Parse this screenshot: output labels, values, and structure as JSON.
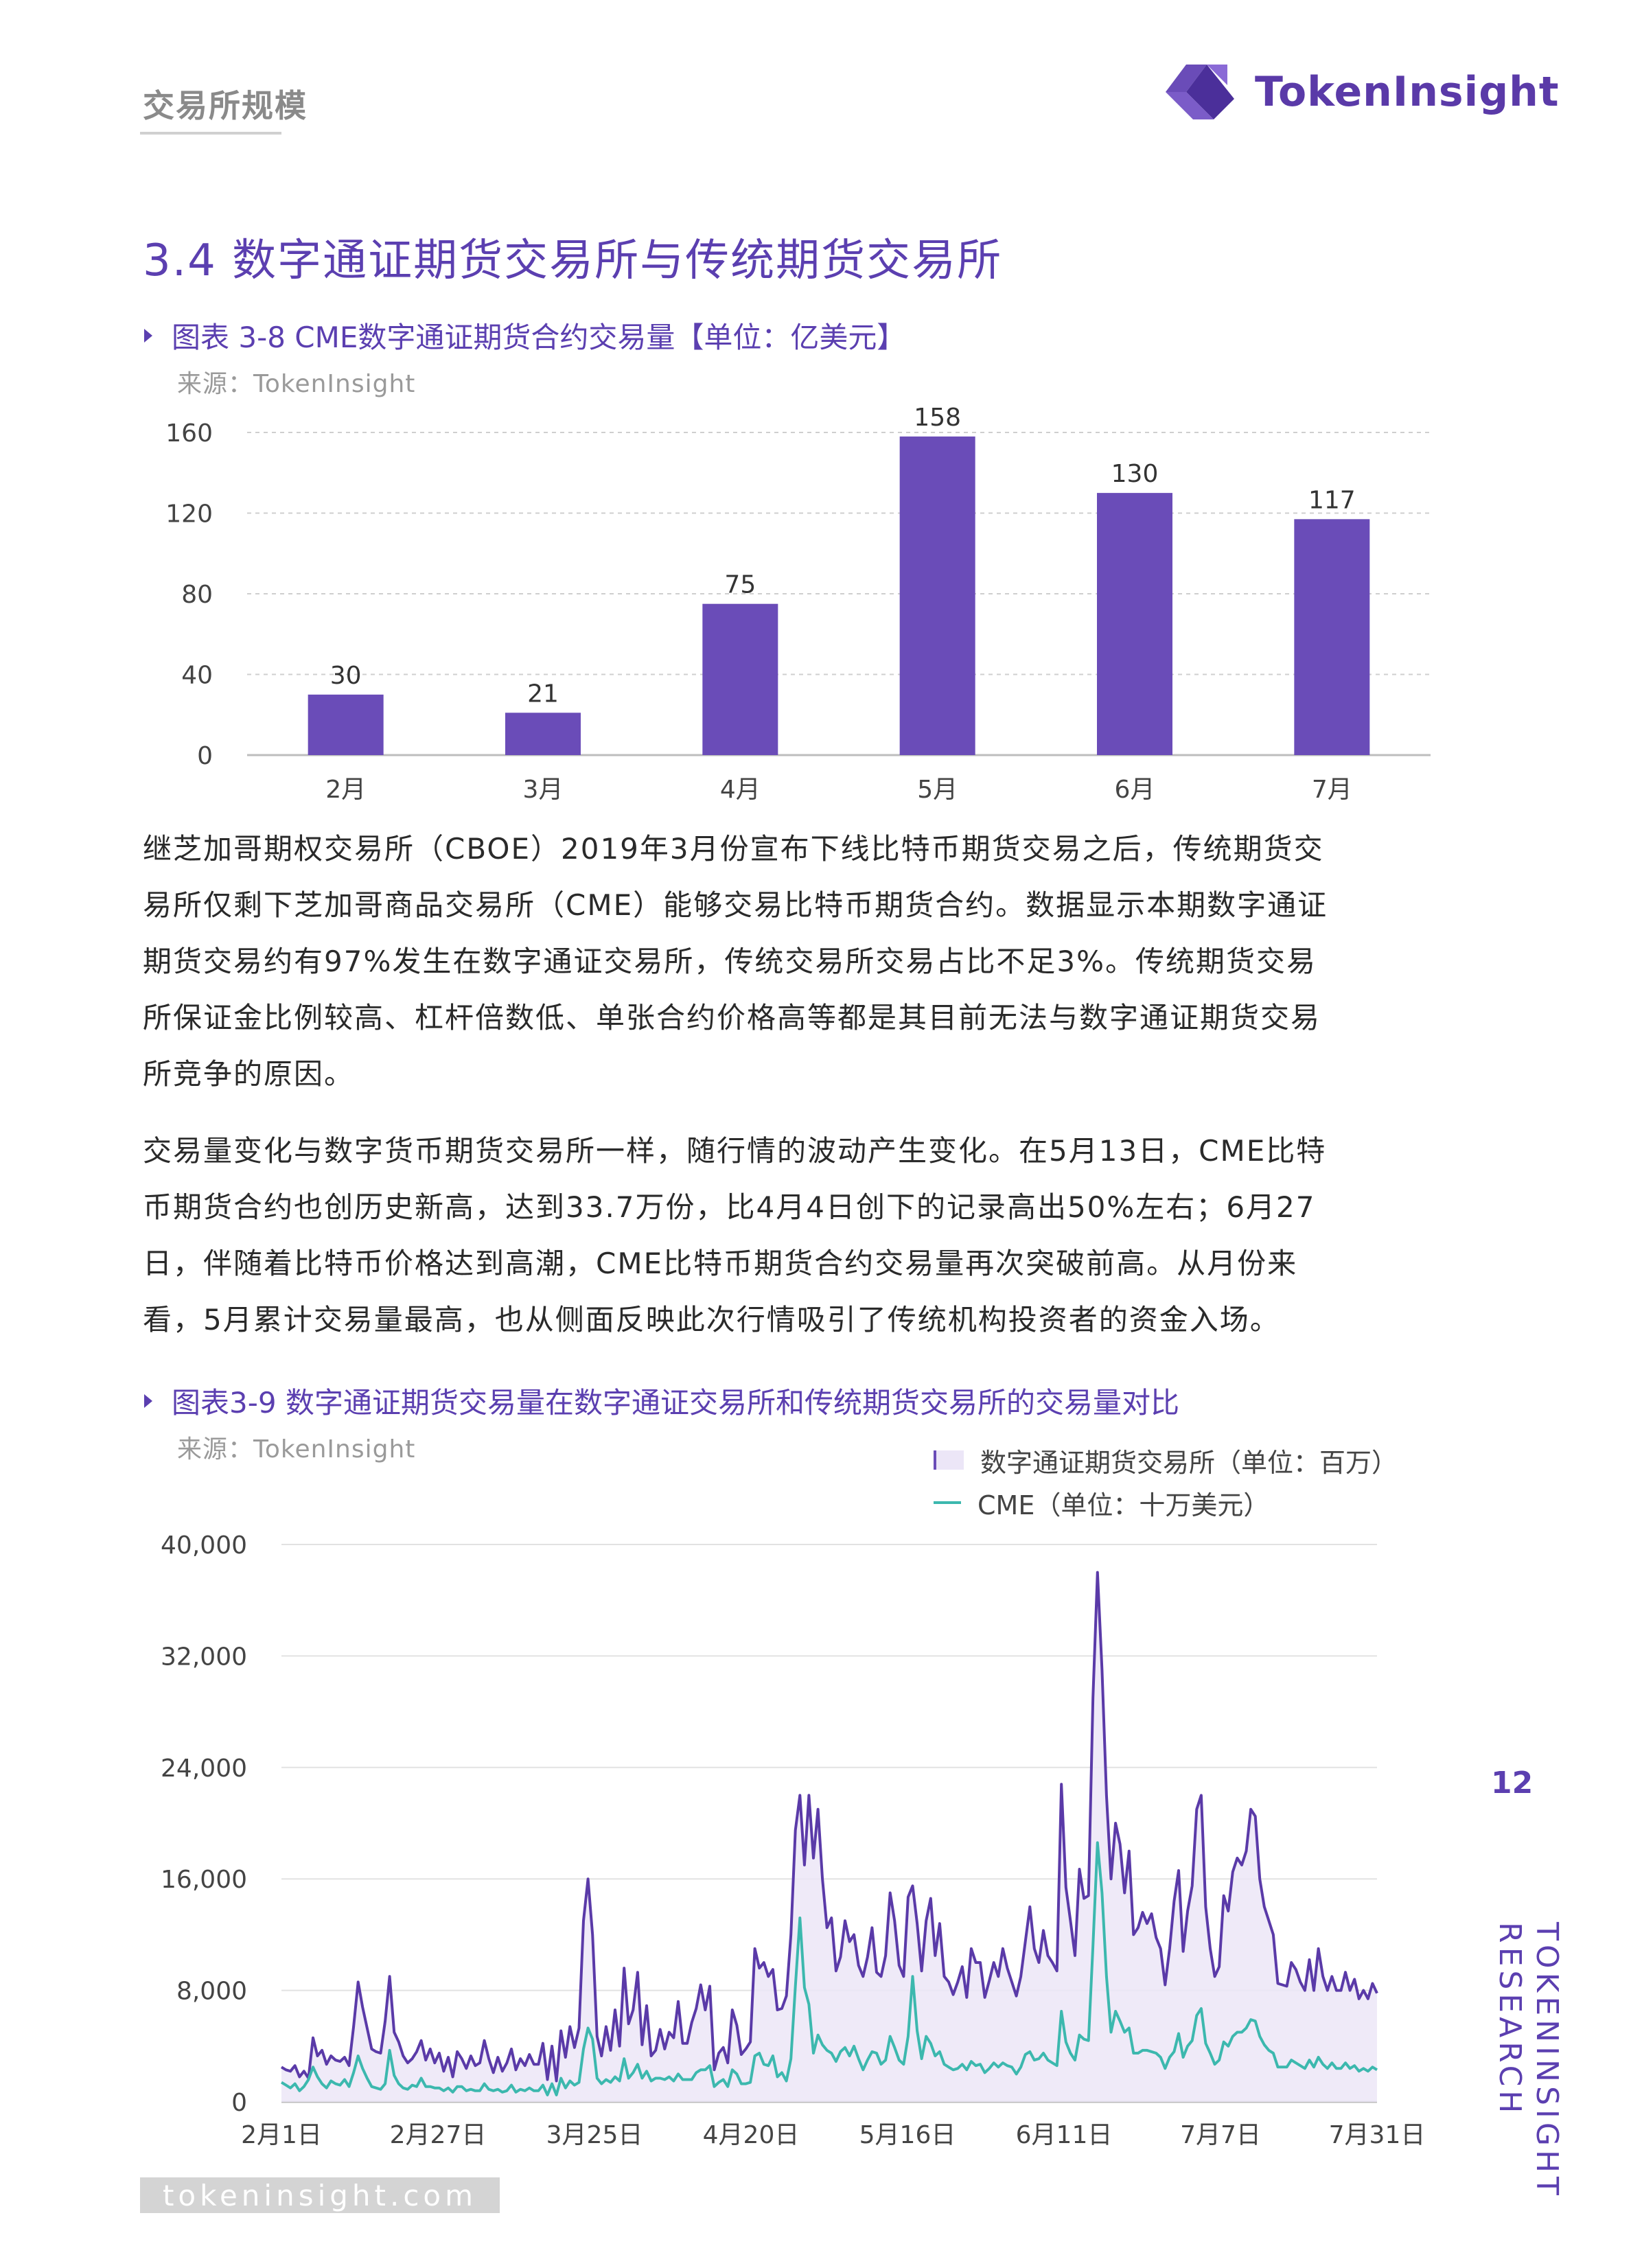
{
  "header": {
    "section": "交易所规模",
    "logo_text": "TokenInsight"
  },
  "section_title": "3.4 数字通证期货交易所与传统期货交易所",
  "figure1": {
    "caption": "图表 3-8 CME数字通证期货合约交易量【单位：亿美元】",
    "source": "来源：TokenInsight"
  },
  "figure2": {
    "caption": "图表3-9 数字通证期货交易量在数字通证交易所和传统期货交易所的交易量对比",
    "source": "来源：TokenInsight"
  },
  "paragraph1": [
    "继芝加哥期权交易所（CBOE）2019年3月份宣布下线比特币期货交易之后，传统期货交",
    "易所仅剩下芝加哥商品交易所（CME）能够交易比特币期货合约。数据显示本期数字通证",
    "期货交易约有97%发生在数字通证交易所，传统交易所交易占比不足3%。传统期货交易",
    "所保证金比例较高、杠杆倍数低、单张合约价格高等都是其目前无法与数字通证期货交易",
    "所竞争的原因。"
  ],
  "paragraph2": [
    "交易量变化与数字货币期货交易所一样，随行情的波动产生变化。在5月13日，CME比特",
    "币期货合约也创历史新高，达到33.7万份，比4月4日创下的记录高出50%左右；6月27",
    "日，伴随着比特币价格达到高潮，CME比特币期货合约交易量再次突破前高。从月份来",
    "看，5月累计交易量最高，也从侧面反映此次行情吸引了传统机构投资者的资金入场。"
  ],
  "page_number": "12",
  "vertical_brand": [
    "TOKENINSIGHT",
    "RESEARCH"
  ],
  "footer_url": "tokeninsight.com",
  "colors": {
    "purple": "#6a4cb8",
    "teal": "#3cb8ae",
    "accent": "#5b3fb0"
  },
  "chart_data": [
    {
      "type": "bar",
      "categories": [
        "2月",
        "3月",
        "4月",
        "5月",
        "6月",
        "7月"
      ],
      "values": [
        30,
        21,
        75,
        158,
        130,
        117
      ],
      "ylim": [
        0,
        160
      ],
      "yticks": [
        0,
        40,
        80,
        120,
        160
      ],
      "grid": true,
      "data_labels": true
    },
    {
      "type": "area",
      "ylim": [
        0,
        40000
      ],
      "yticks": [
        0,
        8000,
        16000,
        24000,
        32000,
        40000
      ],
      "ytick_labels": [
        "0",
        "8,000",
        "16,000",
        "24,000",
        "32,000",
        "40,000"
      ],
      "xtick_labels": [
        "2月1日",
        "2月27日",
        "3月25日",
        "4月20日",
        "5月16日",
        "6月11日",
        "7月7日",
        "7月31日"
      ],
      "legend_position": "top-right",
      "grid": true,
      "series": [
        {
          "name": "数字通证期货交易所（单位：百万）",
          "values": [
            2500,
            2300,
            2200,
            2600,
            1800,
            2200,
            1700,
            4600,
            3300,
            3700,
            2700,
            3300,
            3000,
            2900,
            3200,
            2600,
            5400,
            8600,
            6800,
            5300,
            3800,
            3600,
            3500,
            5800,
            9000,
            5000,
            4300,
            3300,
            2800,
            3100,
            3600,
            4400,
            3000,
            3800,
            2800,
            3500,
            2200,
            3200,
            1800,
            3600,
            3100,
            2400,
            3300,
            2600,
            2800,
            4400,
            3100,
            2100,
            3200,
            2200,
            2800,
            3800,
            2300,
            3100,
            2600,
            3400,
            2700,
            2700,
            4200,
            1600,
            4000,
            1500,
            5100,
            3200,
            5400,
            3900,
            5300,
            13000,
            16000,
            12000,
            4700,
            3300,
            5400,
            3700,
            6600,
            4000,
            9600,
            5600,
            6600,
            9300,
            4100,
            6900,
            3300,
            3700,
            5200,
            3800,
            5000,
            4600,
            7200,
            4200,
            4200,
            5700,
            6700,
            8400,
            6600,
            8300,
            2300,
            3500,
            3900,
            2800,
            6600,
            5500,
            3400,
            3800,
            4300,
            11000,
            9600,
            10000,
            9000,
            9500,
            6600,
            6700,
            7600,
            12000,
            19500,
            22000,
            17000,
            22000,
            17500,
            21000,
            16000,
            12500,
            13200,
            9400,
            10400,
            13000,
            11500,
            12000,
            9800,
            9000,
            10400,
            12500,
            9300,
            9000,
            10500,
            15000,
            13000,
            9800,
            9000,
            14700,
            15500,
            12800,
            9400,
            13000,
            14600,
            10500,
            12800,
            9000,
            8600,
            7700,
            8600,
            9700,
            7500,
            11000,
            10000,
            10000,
            7500,
            8700,
            10000,
            9000,
            11000,
            9600,
            8600,
            7600,
            9000,
            11500,
            14000,
            11000,
            10000,
            12300,
            10500,
            10000,
            9400,
            22800,
            15400,
            13000,
            10500,
            16700,
            14600,
            14800,
            29000,
            38000,
            31000,
            22000,
            16000,
            20000,
            18500,
            15000,
            18000,
            12000,
            12500,
            13600,
            12800,
            13500,
            11800,
            11000,
            8400,
            11000,
            14400,
            16600,
            10800,
            13700,
            15500,
            21000,
            22000,
            14000,
            11000,
            9000,
            9700,
            14800,
            13700,
            16500,
            17500,
            17000,
            18000,
            21000,
            20500,
            16000,
            14000,
            13000,
            12000,
            8500,
            8400,
            8300,
            10000,
            9500,
            8600,
            8000,
            10200,
            8000,
            11000,
            9000,
            8000,
            9000,
            8000,
            8000,
            9300,
            8000,
            8800,
            7400,
            8000,
            7400,
            8500,
            7800
          ]
        },
        {
          "name": "CME（单位：十万美元）",
          "values": [
            1400,
            1200,
            1000,
            1300,
            800,
            1100,
            1600,
            2500,
            1800,
            1300,
            1000,
            1500,
            1300,
            1200,
            1600,
            1100,
            2100,
            3300,
            2400,
            1700,
            1100,
            1000,
            900,
            1300,
            3700,
            1900,
            1300,
            1000,
            900,
            1200,
            1100,
            1700,
            1100,
            1100,
            1000,
            1000,
            800,
            1000,
            700,
            1100,
            1100,
            800,
            900,
            800,
            800,
            1300,
            900,
            800,
            900,
            700,
            800,
            1200,
            700,
            900,
            800,
            1000,
            800,
            800,
            1200,
            500,
            1300,
            500,
            1700,
            1000,
            1500,
            1200,
            1400,
            3800,
            5300,
            4500,
            1700,
            1300,
            1600,
            1400,
            1800,
            1500,
            3100,
            1700,
            2100,
            2700,
            1700,
            2200,
            1500,
            1700,
            1700,
            1600,
            1800,
            1500,
            2000,
            1600,
            1600,
            1600,
            2100,
            2300,
            2300,
            2600,
            1100,
            1400,
            1600,
            1100,
            2300,
            2000,
            1300,
            1300,
            1400,
            3300,
            3500,
            2700,
            2600,
            3300,
            1800,
            2100,
            1500,
            3100,
            8300,
            13200,
            8200,
            7000,
            3500,
            4800,
            4100,
            3700,
            3500,
            2900,
            3600,
            3900,
            3300,
            4000,
            3100,
            2300,
            3000,
            3600,
            3500,
            2700,
            3000,
            4700,
            3900,
            3000,
            2700,
            4700,
            9000,
            5100,
            3100,
            4700,
            4200,
            3300,
            3600,
            2700,
            2500,
            2300,
            2400,
            2700,
            2300,
            2900,
            2600,
            2700,
            2100,
            2400,
            2800,
            2500,
            2800,
            2600,
            2500,
            2000,
            2500,
            3400,
            3600,
            3000,
            3100,
            3500,
            3000,
            2800,
            2600,
            6500,
            4300,
            3500,
            3000,
            4800,
            4500,
            4400,
            11200,
            18600,
            15000,
            9000,
            5000,
            6500,
            5800,
            5000,
            5300,
            3500,
            3500,
            3700,
            3700,
            3600,
            3500,
            3200,
            2400,
            3200,
            3600,
            4900,
            3200,
            4000,
            4400,
            6200,
            6700,
            4200,
            3500,
            2700,
            3000,
            4300,
            4000,
            4700,
            5000,
            5000,
            5300,
            5900,
            5800,
            4700,
            4100,
            3700,
            3500,
            2500,
            2500,
            2500,
            3000,
            2800,
            2600,
            2400,
            3000,
            2500,
            3200,
            2700,
            2400,
            2800,
            2400,
            2400,
            2800,
            2400,
            2600,
            2200,
            2400,
            2200,
            2500,
            2300
          ]
        }
      ]
    }
  ]
}
